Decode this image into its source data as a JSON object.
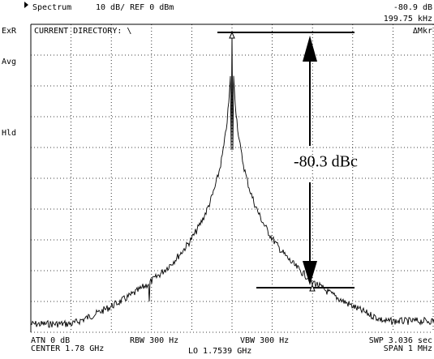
{
  "header": {
    "mode": "Spectrum",
    "scale": "10 dB/ REF 0 dBm",
    "marker_level": "-80.9 dB",
    "marker_freq": "199.75 kHz",
    "marker_type": "ΔMkr",
    "directory": "CURRENT DIRECTORY: \\"
  },
  "side_labels": [
    "ExR",
    "Avg",
    "Hld"
  ],
  "annotation": "-80.3 dBc",
  "footer": {
    "atn": "ATN  0 dB",
    "rbw": "RBW 300 Hz",
    "vbw": "VBW  300 Hz",
    "swp": "SWP  3.036 sec",
    "center": "CENTER  1.78 GHz",
    "lo": "LO  1.7539 GHz",
    "span": "SPAN  1 MHz"
  }
}
